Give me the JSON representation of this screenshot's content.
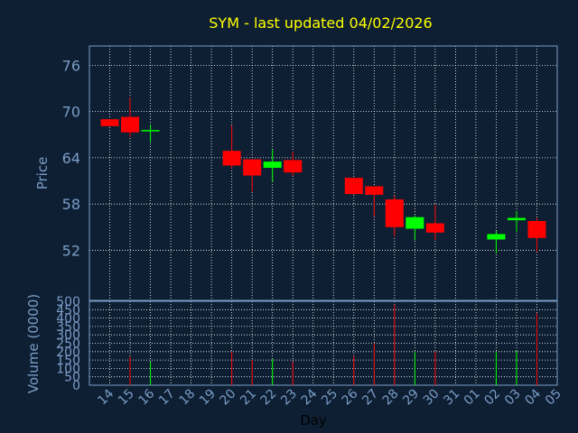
{
  "chart_data": {
    "type": "candlestick",
    "title": "SYM - last updated 04/02/2026",
    "xlabel": "Day",
    "price_axis": {
      "label": "Price",
      "ticks": [
        76,
        70,
        64,
        58,
        52
      ],
      "ylim": [
        45.5,
        78.5
      ]
    },
    "volume_axis": {
      "label": "Volume (0000)",
      "ticks": [
        500,
        450,
        400,
        350,
        300,
        250,
        200,
        150,
        100,
        50,
        0
      ],
      "ylim": [
        0,
        500
      ]
    },
    "x_tick_labels": [
      "14",
      "15",
      "16",
      "17",
      "18",
      "19",
      "20",
      "21",
      "22",
      "23",
      "24",
      "25",
      "26",
      "27",
      "28",
      "29",
      "30",
      "31",
      "01",
      "02",
      "03",
      "04",
      "05"
    ],
    "grid": true,
    "colors": {
      "up": "#00ff00",
      "down": "#ff0000",
      "grid": "#ffffff",
      "axes": "#7a9cc6",
      "background": "#0e1f33",
      "title": "#ffff00"
    },
    "candles": [
      {
        "day": "14",
        "open": 69.0,
        "high": 69.0,
        "low": 68.1,
        "close": 68.1,
        "volume": 0
      },
      {
        "day": "15",
        "open": 69.3,
        "high": 71.8,
        "low": 66.7,
        "close": 67.3,
        "volume": 170
      },
      {
        "day": "16",
        "open": 67.6,
        "high": 68.3,
        "low": 66.0,
        "close": 67.6,
        "volume": 140
      },
      {
        "day": "20",
        "open": 64.9,
        "high": 68.2,
        "low": 62.6,
        "close": 63.0,
        "volume": 200
      },
      {
        "day": "21",
        "open": 63.8,
        "high": 63.8,
        "low": 59.6,
        "close": 61.7,
        "volume": 150
      },
      {
        "day": "22",
        "open": 62.7,
        "high": 65.1,
        "low": 60.9,
        "close": 63.5,
        "volume": 155
      },
      {
        "day": "23",
        "open": 63.7,
        "high": 64.8,
        "low": 61.6,
        "close": 62.1,
        "volume": 140
      },
      {
        "day": "26",
        "open": 61.4,
        "high": 61.4,
        "low": 59.2,
        "close": 59.3,
        "volume": 175
      },
      {
        "day": "27",
        "open": 60.3,
        "high": 60.3,
        "low": 56.4,
        "close": 59.2,
        "volume": 250
      },
      {
        "day": "28",
        "open": 58.6,
        "high": 59.1,
        "low": 53.8,
        "close": 55.0,
        "volume": 480
      },
      {
        "day": "29",
        "open": 54.8,
        "high": 56.5,
        "low": 53.3,
        "close": 56.3,
        "volume": 200
      },
      {
        "day": "30",
        "open": 55.5,
        "high": 57.9,
        "low": 53.3,
        "close": 54.3,
        "volume": 200
      },
      {
        "day": "02",
        "open": 53.4,
        "high": 54.5,
        "low": 51.6,
        "close": 54.1,
        "volume": 200
      },
      {
        "day": "03",
        "open": 55.9,
        "high": 57.1,
        "low": 54.4,
        "close": 56.2,
        "volume": 205
      },
      {
        "day": "04",
        "open": 55.8,
        "high": 56.2,
        "low": 51.8,
        "close": 53.6,
        "volume": 430
      }
    ]
  }
}
